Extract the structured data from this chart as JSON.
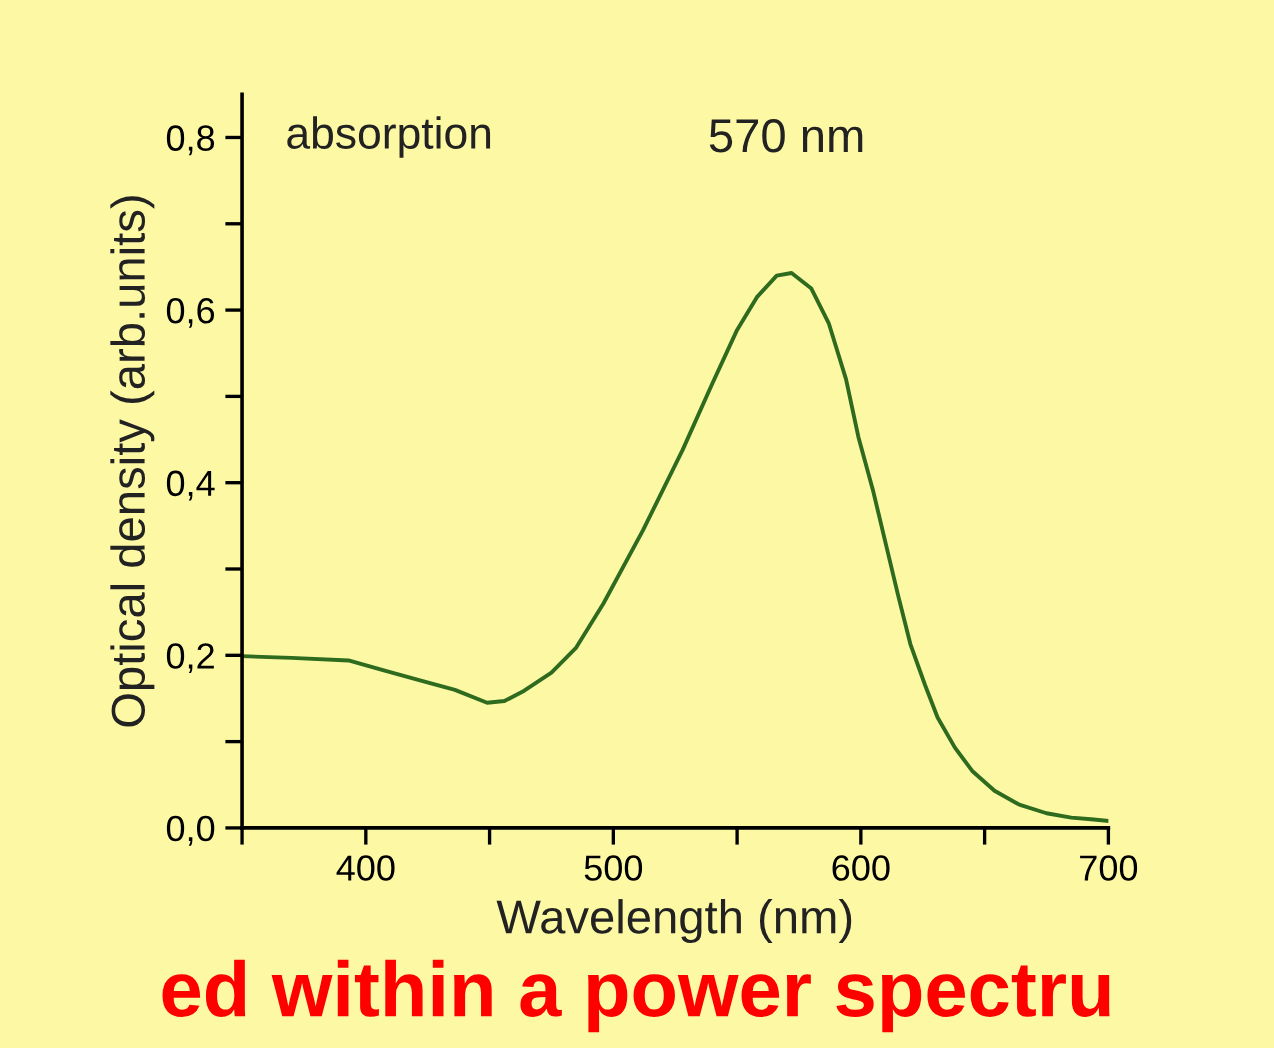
{
  "chart_data": {
    "type": "line",
    "xlabel": "Wavelength (nm)",
    "ylabel": "Optical density (arb.units)",
    "series": [
      {
        "color": "#2e6b1e",
        "x": [
          350,
          370,
          393,
          408,
          423,
          436,
          449,
          456,
          464,
          475,
          485,
          496,
          512,
          528,
          540,
          550,
          558,
          566,
          572,
          580,
          587,
          594,
          599,
          605,
          610,
          615,
          620,
          626,
          631,
          638,
          645,
          654,
          664,
          675,
          685,
          693,
          700
        ],
        "values": [
          0.199,
          0.197,
          0.194,
          0.182,
          0.17,
          0.16,
          0.145,
          0.147,
          0.159,
          0.18,
          0.209,
          0.26,
          0.345,
          0.438,
          0.515,
          0.577,
          0.615,
          0.64,
          0.643,
          0.625,
          0.585,
          0.52,
          0.453,
          0.39,
          0.33,
          0.27,
          0.213,
          0.165,
          0.128,
          0.093,
          0.066,
          0.043,
          0.027,
          0.017,
          0.012,
          0.01,
          0.008
        ]
      }
    ],
    "xlim": [
      350,
      700
    ],
    "ylim": [
      0,
      0.85
    ],
    "xticks": [
      {
        "value": 350,
        "label": null
      },
      400,
      {
        "value": 450,
        "label": null
      },
      500,
      {
        "value": 550,
        "label": null
      },
      600,
      {
        "value": 650,
        "label": null
      },
      700
    ],
    "yticks": [
      {
        "value": 0,
        "label": "0,0"
      },
      {
        "value": 0.1,
        "label": null
      },
      {
        "value": 0.2,
        "label": "0,2"
      },
      {
        "value": 0.3,
        "label": null
      },
      {
        "value": 0.4,
        "label": "0,4"
      },
      {
        "value": 0.5,
        "label": null
      },
      {
        "value": 0.6,
        "label": "0,6"
      },
      {
        "value": 0.7,
        "label": null
      },
      {
        "value": 0.8,
        "label": "0,8"
      }
    ],
    "grid": false,
    "legend": false,
    "marker": "none",
    "line_style": "solid",
    "annotations": [
      "absorption",
      {
        "text": "570 nm",
        "x": 570,
        "y": 0.643
      },
      "ed within a power spectru"
    ]
  }
}
